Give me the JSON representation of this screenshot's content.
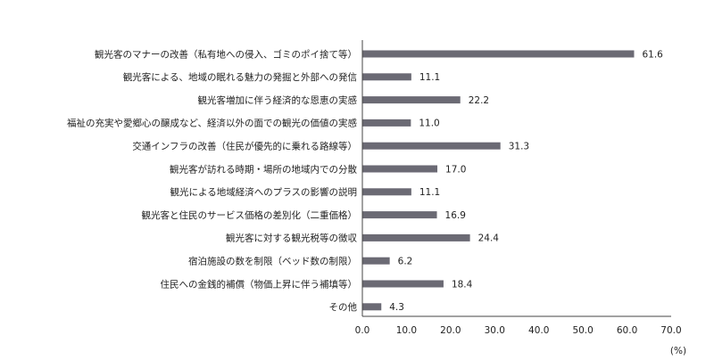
{
  "chart_data": {
    "type": "bar",
    "orientation": "horizontal",
    "categories": [
      "観光客のマナーの改善（私有地への侵入、ゴミのポイ捨て等）",
      "観光客による、地域の眠れる魅力の発掘と外部への発信",
      "観光客増加に伴う経済的な恩恵の実感",
      "福祉の充実や愛郷心の醸成など、経済以外の面での観光の価値の実感",
      "交通インフラの改善（住民が優先的に乗れる路線等）",
      "観光客が訪れる時期・場所の地域内での分散",
      "観光による地域経済へのプラスの影響の説明",
      "観光客と住民のサービス価格の差別化（二重価格）",
      "観光客に対する観光税等の徴収",
      "宿泊施設の数を制限（ベッド数の制限）",
      "住民への金銭的補償（物価上昇に伴う補填等）",
      "その他"
    ],
    "values": [
      61.6,
      11.1,
      22.2,
      11.0,
      31.3,
      17.0,
      11.1,
      16.9,
      24.4,
      6.2,
      18.4,
      4.3
    ],
    "value_labels": [
      "61.6",
      "11.1",
      "22.2",
      "11.0",
      "31.3",
      "17.0",
      "11.1",
      "16.9",
      "24.4",
      "6.2",
      "18.4",
      "4.3"
    ],
    "xlim": [
      0,
      70
    ],
    "xticks": [
      "0.0",
      "10.0",
      "20.0",
      "30.0",
      "40.0",
      "50.0",
      "60.0",
      "70.0"
    ],
    "unit_label": "(%)",
    "grid": false,
    "bar_color": "#6b6a74",
    "axis_color": "#444444"
  }
}
